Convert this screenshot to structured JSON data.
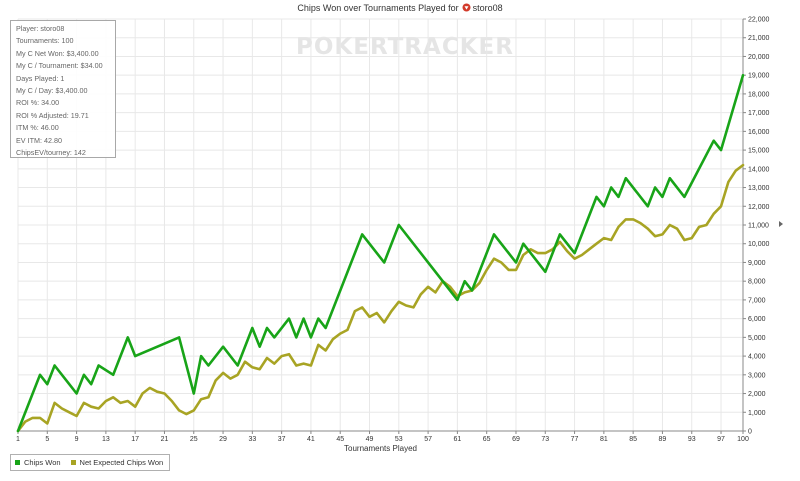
{
  "header": {
    "title_prefix": "Chips Won over Tournaments Played for",
    "player": "storo08"
  },
  "watermark": "POKERTRACKER",
  "stats": [
    "Player: storo08",
    "Tournaments: 100",
    "My C Net Won: $3,400.00",
    "My C / Tournament: $34.00",
    "Days Played: 1",
    "My C / Day: $3,400.00",
    "ROI %: 34.00",
    "ROI % Adjusted: 19.71",
    "ITM %: 46.00",
    "EV ITM: 42.80",
    "ChipsEV/tourney: 142"
  ],
  "colors": {
    "chips_won": "#18a418",
    "ev_chips": "#a8a424",
    "flag": "#d23a2a",
    "grid": "#e8e8e8",
    "axis": "#888888"
  },
  "chart_data": {
    "type": "line",
    "title": "Chips Won over Tournaments Played for storo08",
    "xlabel": "Tournaments Played",
    "ylabel": "",
    "xlim": [
      1,
      100
    ],
    "ylim": [
      0,
      22000
    ],
    "x_ticks": [
      1,
      5,
      9,
      13,
      17,
      21,
      25,
      29,
      33,
      37,
      41,
      45,
      49,
      53,
      57,
      61,
      65,
      69,
      73,
      77,
      81,
      85,
      89,
      93,
      97,
      100
    ],
    "x_tick_labels": [
      "1",
      "5",
      "9",
      "13",
      "17",
      "21",
      "25",
      "29",
      "33",
      "37",
      "41",
      "45",
      "49",
      "53",
      "57",
      "61",
      "65",
      "69",
      "73",
      "77",
      "81",
      "85",
      "89",
      "93",
      "97",
      "100"
    ],
    "y_ticks": [
      0,
      1000,
      2000,
      3000,
      4000,
      5000,
      6000,
      7000,
      8000,
      9000,
      10000,
      11000,
      12000,
      13000,
      14000,
      15000,
      16000,
      17000,
      18000,
      19000,
      20000,
      21000,
      22000
    ],
    "y_tick_labels": [
      "0",
      "1,000",
      "2,000",
      "3,000",
      "4,000",
      "5,000",
      "6,000",
      "7,000",
      "8,000",
      "9,000",
      "10,000",
      "11,000",
      "12,000",
      "13,000",
      "14,000",
      "15,000",
      "16,000",
      "17,000",
      "18,000",
      "19,000",
      "20,000",
      "21,000",
      "22,000"
    ],
    "grid": true,
    "legend_position": "bottom-left",
    "series": [
      {
        "name": "Chips Won",
        "x": [
          1,
          4,
          5,
          6,
          9,
          10,
          11,
          12,
          14,
          16,
          17,
          23,
          25,
          26,
          27,
          29,
          31,
          33,
          34,
          35,
          36,
          38,
          39,
          40,
          41,
          42,
          43,
          48,
          51,
          53,
          61,
          62,
          63,
          66,
          69,
          70,
          73,
          75,
          77,
          80,
          81,
          82,
          83,
          84,
          87,
          88,
          89,
          90,
          92,
          96,
          97,
          100
        ],
        "values": [
          0,
          3000,
          2500,
          3500,
          2000,
          3000,
          2500,
          3500,
          3000,
          5000,
          4000,
          5000,
          2000,
          4000,
          3500,
          4500,
          3500,
          5500,
          4500,
          5500,
          5000,
          6000,
          5000,
          6000,
          5000,
          6000,
          5500,
          10500,
          9000,
          11000,
          7000,
          8000,
          7500,
          10500,
          9000,
          10000,
          8500,
          10500,
          9500,
          12500,
          12000,
          13000,
          12500,
          13500,
          12000,
          13000,
          12500,
          13500,
          12500,
          15500,
          15000,
          19000
        ]
      },
      {
        "name": "Net Expected Chips Won",
        "x": [
          1,
          2,
          3,
          4,
          5,
          6,
          7,
          8,
          9,
          10,
          11,
          12,
          13,
          14,
          15,
          16,
          17,
          18,
          19,
          20,
          21,
          22,
          23,
          24,
          25,
          26,
          27,
          28,
          29,
          30,
          31,
          32,
          33,
          34,
          35,
          36,
          37,
          38,
          39,
          40,
          41,
          42,
          43,
          44,
          45,
          46,
          47,
          48,
          49,
          50,
          51,
          52,
          53,
          54,
          55,
          56,
          57,
          58,
          59,
          60,
          61,
          62,
          63,
          64,
          65,
          66,
          67,
          68,
          69,
          70,
          71,
          72,
          73,
          74,
          75,
          76,
          77,
          78,
          79,
          80,
          81,
          82,
          83,
          84,
          85,
          86,
          87,
          88,
          89,
          90,
          91,
          92,
          93,
          94,
          95,
          96,
          97,
          98,
          99,
          100
        ],
        "values": [
          0,
          500,
          700,
          700,
          400,
          1500,
          1200,
          1000,
          800,
          1500,
          1300,
          1200,
          1600,
          1800,
          1500,
          1600,
          1300,
          2000,
          2300,
          2100,
          2000,
          1600,
          1100,
          900,
          1100,
          1700,
          1800,
          2700,
          3100,
          2800,
          3000,
          3700,
          3400,
          3300,
          3900,
          3600,
          4000,
          4100,
          3500,
          3600,
          3500,
          4600,
          4300,
          4900,
          5200,
          5400,
          6400,
          6600,
          6100,
          6300,
          5800,
          6400,
          6900,
          6700,
          6600,
          7300,
          7700,
          7400,
          8000,
          7700,
          7200,
          7400,
          7500,
          7900,
          8600,
          9200,
          9000,
          8600,
          8600,
          9400,
          9700,
          9500,
          9500,
          9700,
          10100,
          9600,
          9200,
          9400,
          9700,
          10000,
          10300,
          10200,
          10900,
          11300,
          11300,
          11100,
          10800,
          10400,
          10500,
          11000,
          10800,
          10200,
          10300,
          10900,
          11000,
          11600,
          12000,
          13300,
          13900,
          14200
        ]
      }
    ]
  }
}
